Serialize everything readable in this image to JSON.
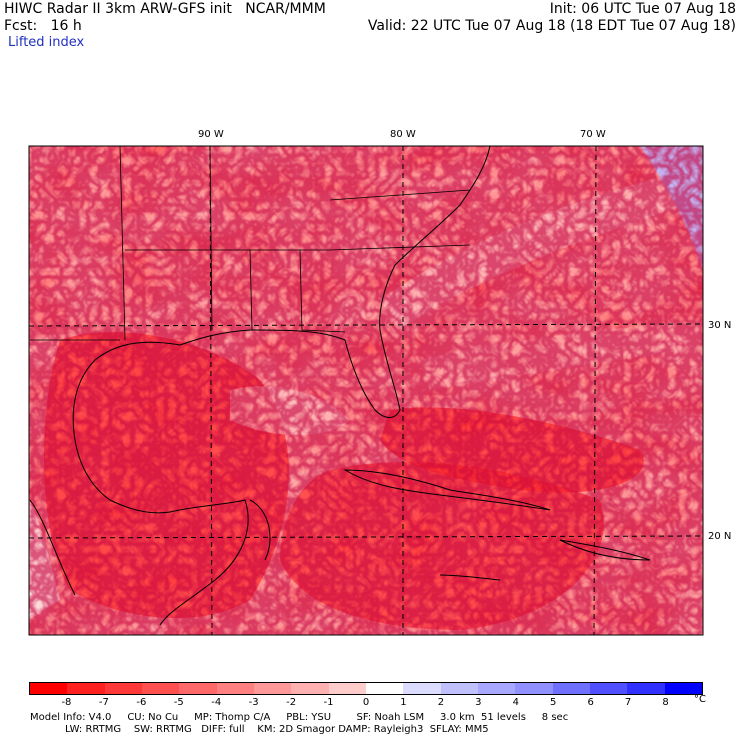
{
  "header": {
    "line1_left": "HIWC Radar II 3km ARW-GFS init   NCAR/MMM",
    "line1_right": "Init: 06 UTC Tue 07 Aug 18",
    "line2_left": "Fcst:   16 h",
    "line2_right": "Valid: 22 UTC Tue 07 Aug 18 (18 EDT Tue 07 Aug 18)",
    "field": "Lifted index"
  },
  "axes": {
    "longitudes": [
      "90 W",
      "80 W",
      "70 W"
    ],
    "latitudes": [
      "30 N",
      "20 N"
    ]
  },
  "colorbar": {
    "tick_labels": [
      "-8",
      "-7",
      "-6",
      "-5",
      "-4",
      "-3",
      "-2",
      "-1",
      "0",
      "1",
      "2",
      "3",
      "4",
      "5",
      "6",
      "7",
      "8"
    ],
    "unit": "°C",
    "colors": [
      "#ff0000",
      "#ff2020",
      "#ff3838",
      "#ff5050",
      "#ff6868",
      "#ff8080",
      "#ff9898",
      "#ffb0b0",
      "#ffcccc",
      "#ffffff",
      "#dcdcff",
      "#c0c0ff",
      "#a8a8ff",
      "#9090ff",
      "#7070ff",
      "#5050ff",
      "#3030ff",
      "#0000ff"
    ]
  },
  "model_info": {
    "line1": "Model Info: V4.0     CU: No Cu     MP: Thomp C/A     PBL: YSU        SF: Noah LSM     3.0 km  51 levels     8 sec",
    "line2": "           LW: RRTMG    SW: RRTMG   DIFF: full    KM: 2D Smagor DAMP: Rayleigh3  SFLAY: MM5"
  }
}
